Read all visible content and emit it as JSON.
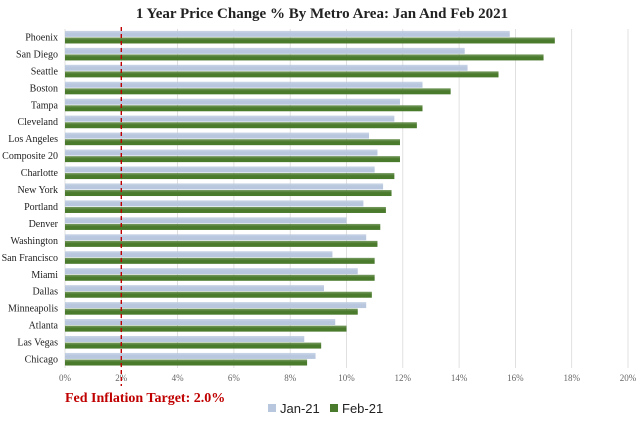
{
  "chart_data": {
    "type": "bar",
    "orientation": "horizontal",
    "title": "1 Year Price Change % By Metro Area: Jan And Feb 2021",
    "categories": [
      "Phoenix",
      "San Diego",
      "Seattle",
      "Boston",
      "Tampa",
      "Cleveland",
      "Los Angeles",
      "Composite 20",
      "Charlotte",
      "New York",
      "Portland",
      "Denver",
      "Washington",
      "San Francisco",
      "Miami",
      "Dallas",
      "Minneapolis",
      "Atlanta",
      "Las Vegas",
      "Chicago"
    ],
    "series": [
      {
        "name": "Jan-21",
        "color": "#b8c7de",
        "values": [
          15.8,
          14.2,
          14.3,
          12.7,
          11.9,
          11.7,
          10.8,
          11.1,
          11.0,
          11.3,
          10.6,
          10.0,
          10.7,
          9.5,
          10.4,
          9.2,
          10.7,
          9.6,
          8.5,
          8.9
        ]
      },
      {
        "name": "Feb-21",
        "color": "#4a7a2c",
        "values": [
          17.4,
          17.0,
          15.4,
          13.7,
          12.7,
          12.5,
          11.9,
          11.9,
          11.7,
          11.6,
          11.4,
          11.2,
          11.1,
          11.0,
          11.0,
          10.9,
          10.4,
          10.0,
          9.1,
          8.6
        ]
      }
    ],
    "xlim": [
      0,
      20
    ],
    "xticks": [
      "0%",
      "2%",
      "4%",
      "6%",
      "8%",
      "10%",
      "12%",
      "14%",
      "16%",
      "18%",
      "20%"
    ],
    "reference_line": {
      "value": 2.0,
      "label": "Fed Inflation Target: 2.0%",
      "color": "#c00000"
    },
    "legend_position": "bottom",
    "grid": "vertical"
  }
}
